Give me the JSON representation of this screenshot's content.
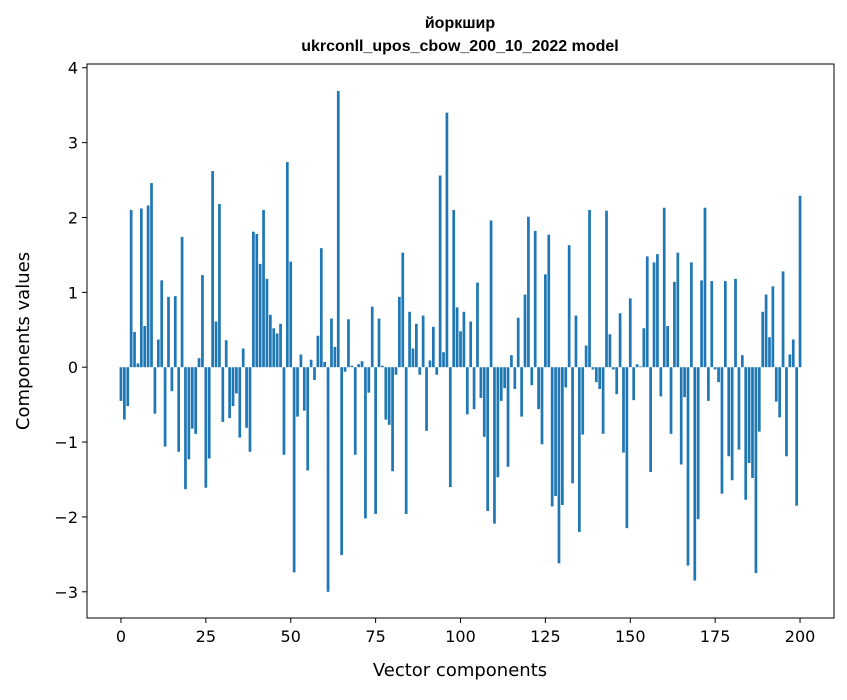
{
  "chart_data": {
    "type": "bar",
    "title_line1": "йоркшир",
    "title_line2": "ukrconll_upos_cbow_200_10_2022 model",
    "xlabel": "Vector components",
    "ylabel": "Components values",
    "xlim": [
      -10,
      210
    ],
    "ylim": [
      -3.35,
      4.05
    ],
    "xticks": [
      0,
      25,
      50,
      75,
      100,
      125,
      150,
      175,
      200
    ],
    "yticks": [
      -3,
      -2,
      -1,
      0,
      1,
      2,
      3,
      4
    ],
    "ytick_labels": [
      "−3",
      "−2",
      "−1",
      "0",
      "1",
      "2",
      "3",
      "4"
    ],
    "bar_color": "#1f77b4",
    "grid": false,
    "values": [
      -0.45,
      -0.7,
      -0.52,
      2.1,
      0.47,
      0.05,
      2.12,
      0.55,
      2.16,
      2.46,
      -0.62,
      0.37,
      1.16,
      -1.06,
      0.94,
      -0.32,
      0.95,
      -1.13,
      1.74,
      -1.63,
      -1.23,
      -0.82,
      -0.89,
      0.12,
      1.23,
      -1.61,
      -1.22,
      2.62,
      0.61,
      2.18,
      -0.73,
      0.36,
      -0.68,
      -0.52,
      -0.35,
      -0.94,
      0.25,
      -0.81,
      -1.13,
      1.81,
      1.78,
      1.38,
      2.1,
      1.18,
      0.7,
      0.52,
      0.45,
      0.58,
      -1.17,
      2.74,
      1.41,
      -2.74,
      -0.66,
      0.17,
      -0.58,
      -1.38,
      0.1,
      -0.17,
      0.42,
      1.59,
      0.07,
      -3.0,
      0.65,
      0.27,
      3.69,
      -2.51,
      -0.06,
      0.64,
      0.02,
      -1.17,
      0.04,
      0.08,
      -2.02,
      -0.34,
      0.81,
      -1.96,
      0.65,
      0.02,
      -0.7,
      -0.77,
      -1.39,
      -0.1,
      0.94,
      1.53,
      -1.96,
      0.74,
      0.25,
      0.58,
      -0.1,
      0.69,
      -0.85,
      0.09,
      0.54,
      -0.1,
      2.56,
      0.2,
      3.4,
      -1.6,
      2.1,
      0.8,
      0.48,
      0.74,
      -0.63,
      0.61,
      -0.56,
      1.13,
      -0.41,
      -0.93,
      -1.92,
      1.96,
      -2.09,
      -1.47,
      -0.45,
      -0.28,
      -1.33,
      0.16,
      -0.29,
      0.66,
      -0.66,
      0.97,
      2.01,
      -0.24,
      1.82,
      -0.56,
      -1.03,
      1.24,
      1.77,
      -1.86,
      -1.72,
      -2.62,
      -1.84,
      -0.27,
      1.63,
      -1.55,
      0.69,
      -2.2,
      -0.9,
      0.29,
      2.1,
      -0.03,
      -0.2,
      -0.29,
      -0.89,
      2.09,
      0.44,
      -0.03,
      -0.36,
      0.72,
      -1.14,
      -2.15,
      0.92,
      -0.44,
      0.04,
      0.01,
      0.52,
      1.48,
      -1.4,
      1.4,
      1.51,
      -0.39,
      2.13,
      0.55,
      -0.89,
      1.14,
      1.53,
      -1.3,
      -0.4,
      -2.65,
      1.4,
      -2.85,
      -2.03,
      1.16,
      2.13,
      -0.45,
      1.15,
      -0.03,
      -0.2,
      -1.69,
      1.15,
      -1.19,
      -1.51,
      1.18,
      -1.1,
      0.16,
      -1.77,
      -1.28,
      -1.48,
      -2.75,
      -0.86,
      0.74,
      0.97,
      0.4,
      1.08,
      -0.46,
      -0.67,
      1.28,
      -1.19,
      0.17,
      0.37,
      -1.85,
      2.29
    ]
  }
}
